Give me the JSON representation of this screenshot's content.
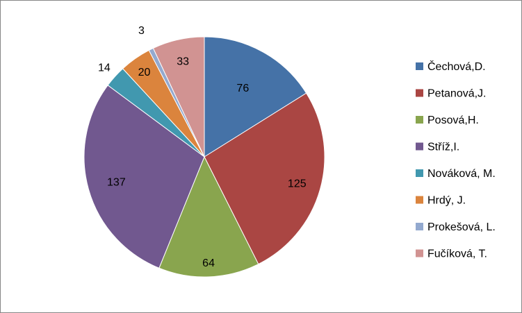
{
  "chart_data": {
    "type": "pie",
    "categories": [
      "Čechová,D.",
      "Petanová,J.",
      "Posová,H.",
      "Stříž,I.",
      "Nováková, M.",
      "Hrdý, J.",
      "Prokešová, L.",
      "Fučíková, T."
    ],
    "values": [
      76,
      125,
      64,
      137,
      14,
      20,
      3,
      33
    ],
    "colors": [
      "#4572A7",
      "#AA4643",
      "#89A54E",
      "#71588F",
      "#4198AF",
      "#DB843D",
      "#93A9CF",
      "#D19392"
    ],
    "legend": "right",
    "data_labels": [
      "76",
      "125",
      "64",
      "137",
      "14",
      "20",
      "3",
      "33"
    ]
  }
}
